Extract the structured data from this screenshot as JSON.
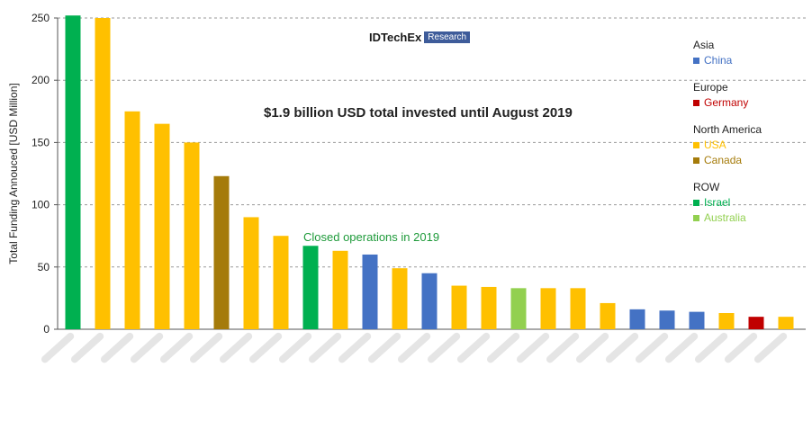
{
  "colors": {
    "China": "#4472c4",
    "Germany": "#c00000",
    "USA": "#ffc000",
    "Canada": "#a57b0a",
    "Israel": "#00b050",
    "Australia": "#92d050"
  },
  "logo": {
    "main": "IDTechEx",
    "box": "Research"
  },
  "headline": "$1.9 billion USD total invested until August 2019",
  "annotation": "Closed operations in 2019",
  "legend": [
    {
      "title": "Asia",
      "items": [
        {
          "label": "China",
          "region": "China"
        }
      ]
    },
    {
      "title": "Europe",
      "items": [
        {
          "label": "Germany",
          "region": "Germany"
        }
      ]
    },
    {
      "title": "North America",
      "items": [
        {
          "label": "USA",
          "region": "USA"
        },
        {
          "label": "Canada",
          "region": "Canada"
        }
      ]
    },
    {
      "title": "ROW",
      "items": [
        {
          "label": "Israel",
          "region": "Israel"
        },
        {
          "label": "Australia",
          "region": "Australia"
        }
      ]
    }
  ],
  "chart_data": {
    "type": "bar",
    "ylabel": "Total Funding Annouced [USD Million]",
    "ylim": [
      0,
      250
    ],
    "yticks": [
      0,
      50,
      100,
      150,
      200,
      250
    ],
    "grid": true,
    "legend_position": "right",
    "tick_labels_obscured": true,
    "values": [
      252,
      250,
      175,
      165,
      150,
      123,
      90,
      75,
      67,
      63,
      60,
      49,
      45,
      35,
      34,
      33,
      33,
      33,
      21,
      16,
      15,
      14,
      13,
      10,
      10
    ],
    "regions": [
      "Israel",
      "USA",
      "USA",
      "USA",
      "USA",
      "Canada",
      "USA",
      "USA",
      "Israel",
      "USA",
      "China",
      "USA",
      "China",
      "USA",
      "USA",
      "Australia",
      "USA",
      "USA",
      "USA",
      "China",
      "China",
      "China",
      "USA",
      "Germany",
      "USA"
    ]
  }
}
